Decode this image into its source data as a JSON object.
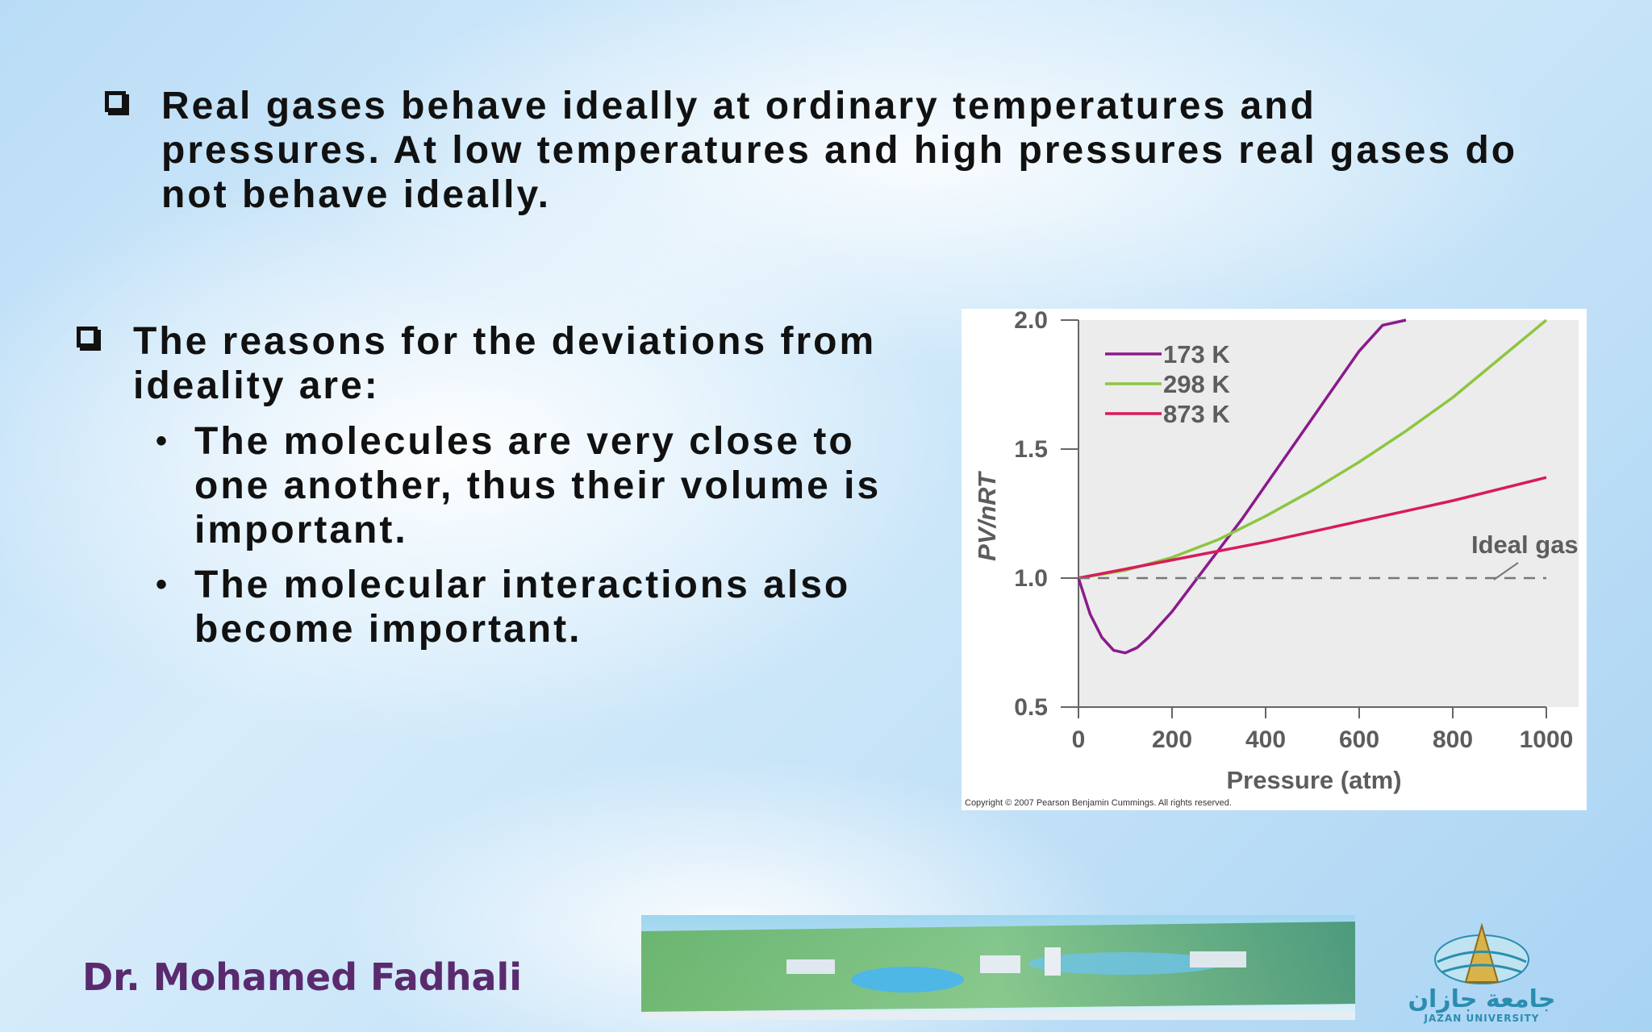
{
  "bullets": {
    "first": "Real gases behave ideally at ordinary temperatures and pressures.  At low temperatures and high pressures real gases do not behave ideally.",
    "second": "The reasons for the deviations from ideality are:",
    "sub_items": [
      "The molecules are very close to one another, thus their volume is important.",
      "The molecular interactions also become important."
    ]
  },
  "footer": {
    "author": "Dr. Mohamed Fadhali",
    "logo_arabic": "جامعة جازان",
    "logo_english": "JAZAN UNIVERSITY"
  },
  "chart_data": {
    "type": "line",
    "xlabel": "Pressure (atm)",
    "ylabel": "PV/nRT",
    "xlim": [
      0,
      1000
    ],
    "ylim": [
      0.5,
      2.0
    ],
    "x_ticks": [
      0,
      200,
      400,
      600,
      800,
      1000
    ],
    "y_ticks": [
      "0.5",
      "1.0",
      "1.5",
      "2.0"
    ],
    "grid": false,
    "legend_position": "top-left",
    "annotation": "Ideal gas",
    "copyright": "Copyright © 2007 Pearson Benjamin Cummings. All rights reserved.",
    "series": [
      {
        "name": "173 K",
        "color": "#8b1a8c",
        "x": [
          0,
          25,
          50,
          75,
          100,
          125,
          150,
          200,
          250,
          300,
          350,
          400,
          450,
          500,
          550,
          600,
          650,
          700
        ],
        "y": [
          1.0,
          0.86,
          0.77,
          0.72,
          0.71,
          0.73,
          0.77,
          0.87,
          0.99,
          1.11,
          1.23,
          1.36,
          1.49,
          1.62,
          1.75,
          1.88,
          1.98,
          2.0
        ]
      },
      {
        "name": "298 K",
        "color": "#8cc63f",
        "x": [
          0,
          100,
          200,
          300,
          400,
          500,
          600,
          700,
          800,
          900,
          1000
        ],
        "y": [
          1.0,
          1.03,
          1.08,
          1.15,
          1.24,
          1.34,
          1.45,
          1.57,
          1.7,
          1.85,
          2.0
        ]
      },
      {
        "name": "873 K",
        "color": "#d81b5b",
        "x": [
          0,
          200,
          400,
          600,
          800,
          1000
        ],
        "y": [
          1.0,
          1.07,
          1.14,
          1.22,
          1.3,
          1.39
        ]
      },
      {
        "name": "Ideal gas",
        "color": "#777777",
        "dashed": true,
        "x": [
          0,
          1000
        ],
        "y": [
          1.0,
          1.0
        ]
      }
    ]
  }
}
